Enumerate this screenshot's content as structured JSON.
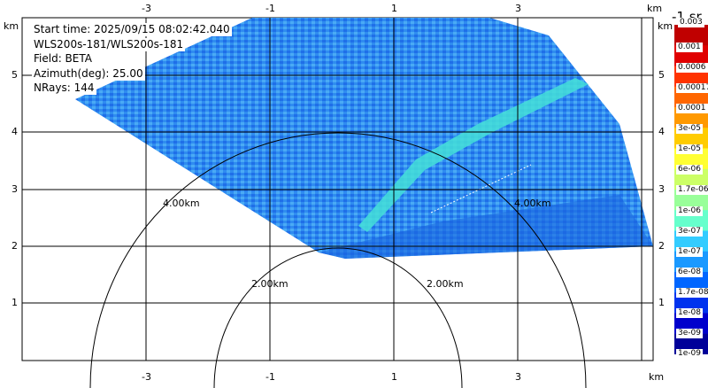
{
  "info": {
    "start_time": "Start time: 2025/09/15 08:02:42.040",
    "instrument": "WLS200s-181/WLS200s-181",
    "field": "Field: BETA",
    "azimuth": "Azimuth(deg): 25.00",
    "nrays": "NRays: 144"
  },
  "axes": {
    "x_unit": "km",
    "y_unit": "km",
    "x_ticks": [
      "-3",
      "-1",
      "1",
      "3"
    ],
    "y_ticks": [
      "5",
      "4",
      "3",
      "2",
      "1"
    ]
  },
  "range_rings": {
    "labels": [
      "4.00km",
      "4.00km",
      "2.00km",
      "2.00km"
    ]
  },
  "colorbar": {
    "units_fragment": "-1 sr",
    "labels": [
      "0.001",
      "0.0006",
      "0.00017",
      "0.0001",
      "3e-05",
      "1e-05",
      "6e-06",
      "1.7e-06",
      "1e-06",
      "3e-07",
      "1e-07",
      "6e-08",
      "1.7e-08",
      "1e-08",
      "3e-09",
      "1e-09"
    ],
    "top_label": "0.003",
    "colors": [
      "#c00000",
      "#e00000",
      "#ff3300",
      "#ff6600",
      "#ff9900",
      "#ffcc00",
      "#ffff33",
      "#ccff66",
      "#99ff99",
      "#66ffcc",
      "#33ccff",
      "#1a99ff",
      "#0066ff",
      "#0033ee",
      "#0000cc",
      "#000099"
    ]
  }
}
